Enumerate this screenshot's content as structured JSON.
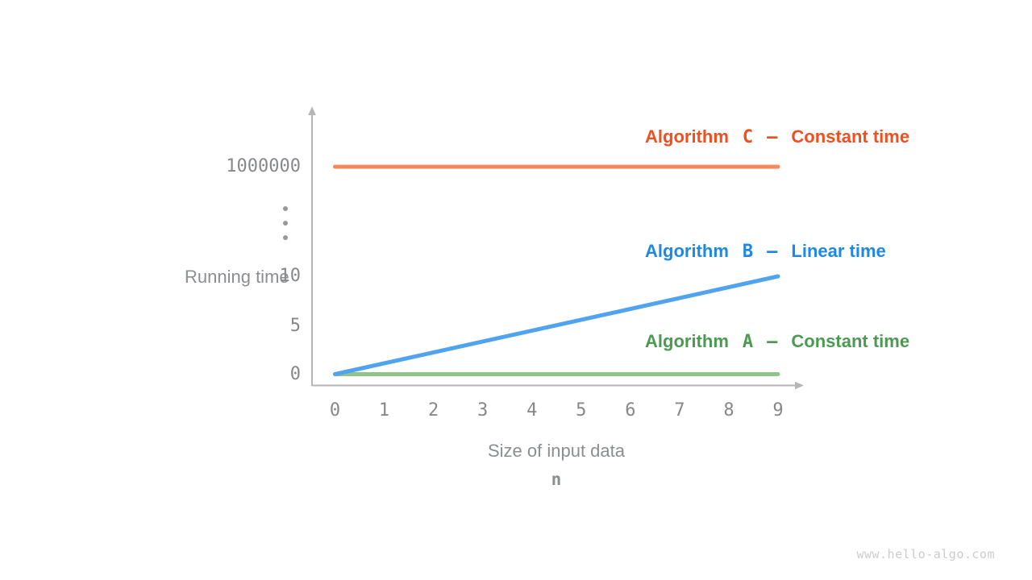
{
  "watermark": "www.hello-algo.com",
  "chart_data": {
    "type": "line",
    "title": "",
    "xlabel": "Size of input data",
    "x_var": "n",
    "ylabel": "Running time",
    "xlim": [
      0,
      9
    ],
    "grid": false,
    "x_ticks": [
      "0",
      "1",
      "2",
      "3",
      "4",
      "5",
      "6",
      "7",
      "8",
      "9"
    ],
    "y_ticks": [
      {
        "label": "0",
        "value": 0
      },
      {
        "label": "5",
        "value": 5
      },
      {
        "label": "10",
        "value": 10
      },
      {
        "label": "1000000",
        "value": 1000000
      }
    ],
    "y_axis_break_symbol": "⋮",
    "legend_position": "inline-right",
    "series": [
      {
        "name": "Algorithm",
        "letter": "C",
        "separator": "–",
        "desc": "Constant time",
        "x": [
          0,
          9
        ],
        "y": [
          1000000,
          1000000
        ],
        "line_color": "#F5895F",
        "label_color": "#F04F1E"
      },
      {
        "name": "Algorithm",
        "letter": "B",
        "separator": "–",
        "desc": "Linear time",
        "x": [
          0,
          9
        ],
        "y": [
          0,
          10
        ],
        "line_color": "#4FA3EF",
        "label_color": "#1E88E5"
      },
      {
        "name": "Algorithm",
        "letter": "A",
        "separator": "–",
        "desc": "Constant time",
        "x": [
          0,
          9
        ],
        "y": [
          0,
          0
        ],
        "line_color": "#8FC58B",
        "label_color": "#4C9A52"
      }
    ],
    "colors": {
      "axis": "#B4B6B8",
      "tick_text": "#86888B",
      "axis_title_text": "#8B8E91",
      "ellipsis_dots": "#96989B",
      "watermark_text": "#CACCCE"
    }
  }
}
